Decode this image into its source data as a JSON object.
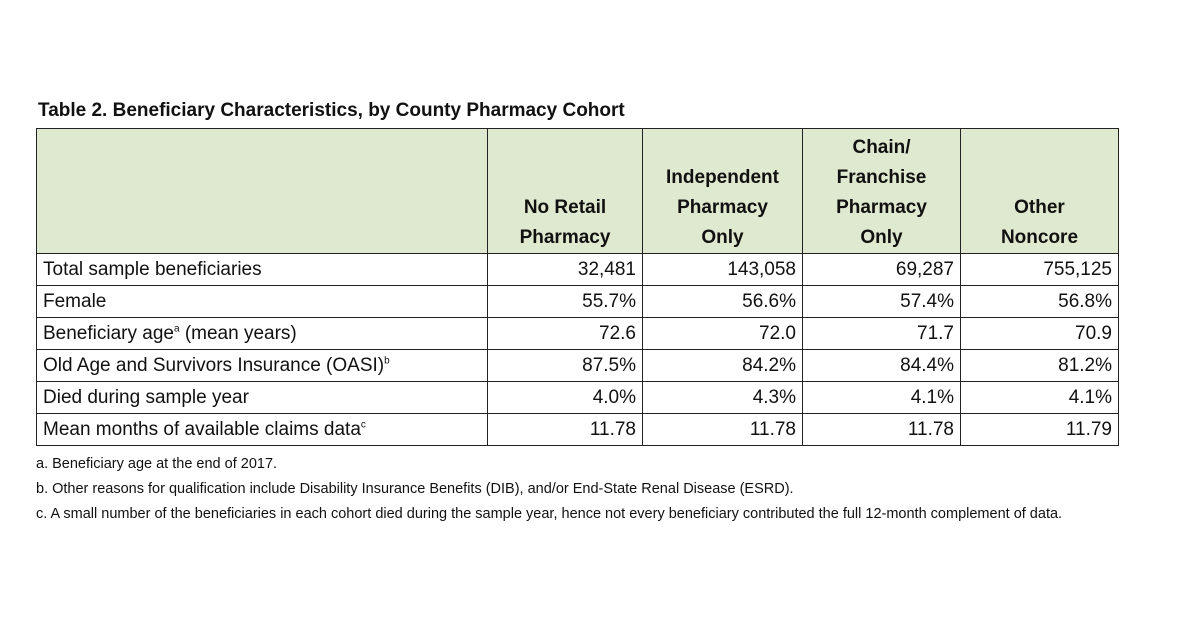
{
  "table": {
    "title": "Table 2. Beneficiary Characteristics, by County Pharmacy Cohort",
    "columns": [
      [
        "No Retail",
        "Pharmacy"
      ],
      [
        "Independent",
        "Pharmacy",
        "Only"
      ],
      [
        "Chain/",
        "Franchise",
        "Pharmacy",
        "Only"
      ],
      [
        "Other",
        "Noncore"
      ]
    ],
    "rows": [
      {
        "label": "Total sample beneficiaries",
        "values": [
          "32,481",
          "143,058",
          "69,287",
          "755,125"
        ]
      },
      {
        "label": "Female",
        "values": [
          "55.7%",
          "56.6%",
          "57.4%",
          "56.8%"
        ]
      },
      {
        "label": "Beneficiary age",
        "sup": "a",
        "label_end": "(mean years)",
        "values": [
          "72.6",
          "72.0",
          "71.7",
          "70.9"
        ]
      },
      {
        "label": "Old Age and Survivors Insurance (OASI)",
        "sup": "b",
        "values": [
          "87.5%",
          "84.2%",
          "84.4%",
          "81.2%"
        ]
      },
      {
        "label": "Died during sample year",
        "values": [
          "4.0%",
          "4.3%",
          "4.1%",
          "4.1%"
        ]
      },
      {
        "label": "Mean months of available claims data",
        "sup": "c",
        "values": [
          "11.78",
          "11.78",
          "11.78",
          "11.79"
        ]
      }
    ]
  },
  "notes": [
    "a. Beneficiary age at the end of 2017.",
    "b. Other reasons for qualification include Disability Insurance Benefits (DIB), and/or End-State Renal Disease (ESRD).",
    "c. A small number of the beneficiaries in each cohort died during the sample year, hence not every beneficiary contributed the full 12-month complement of data."
  ]
}
